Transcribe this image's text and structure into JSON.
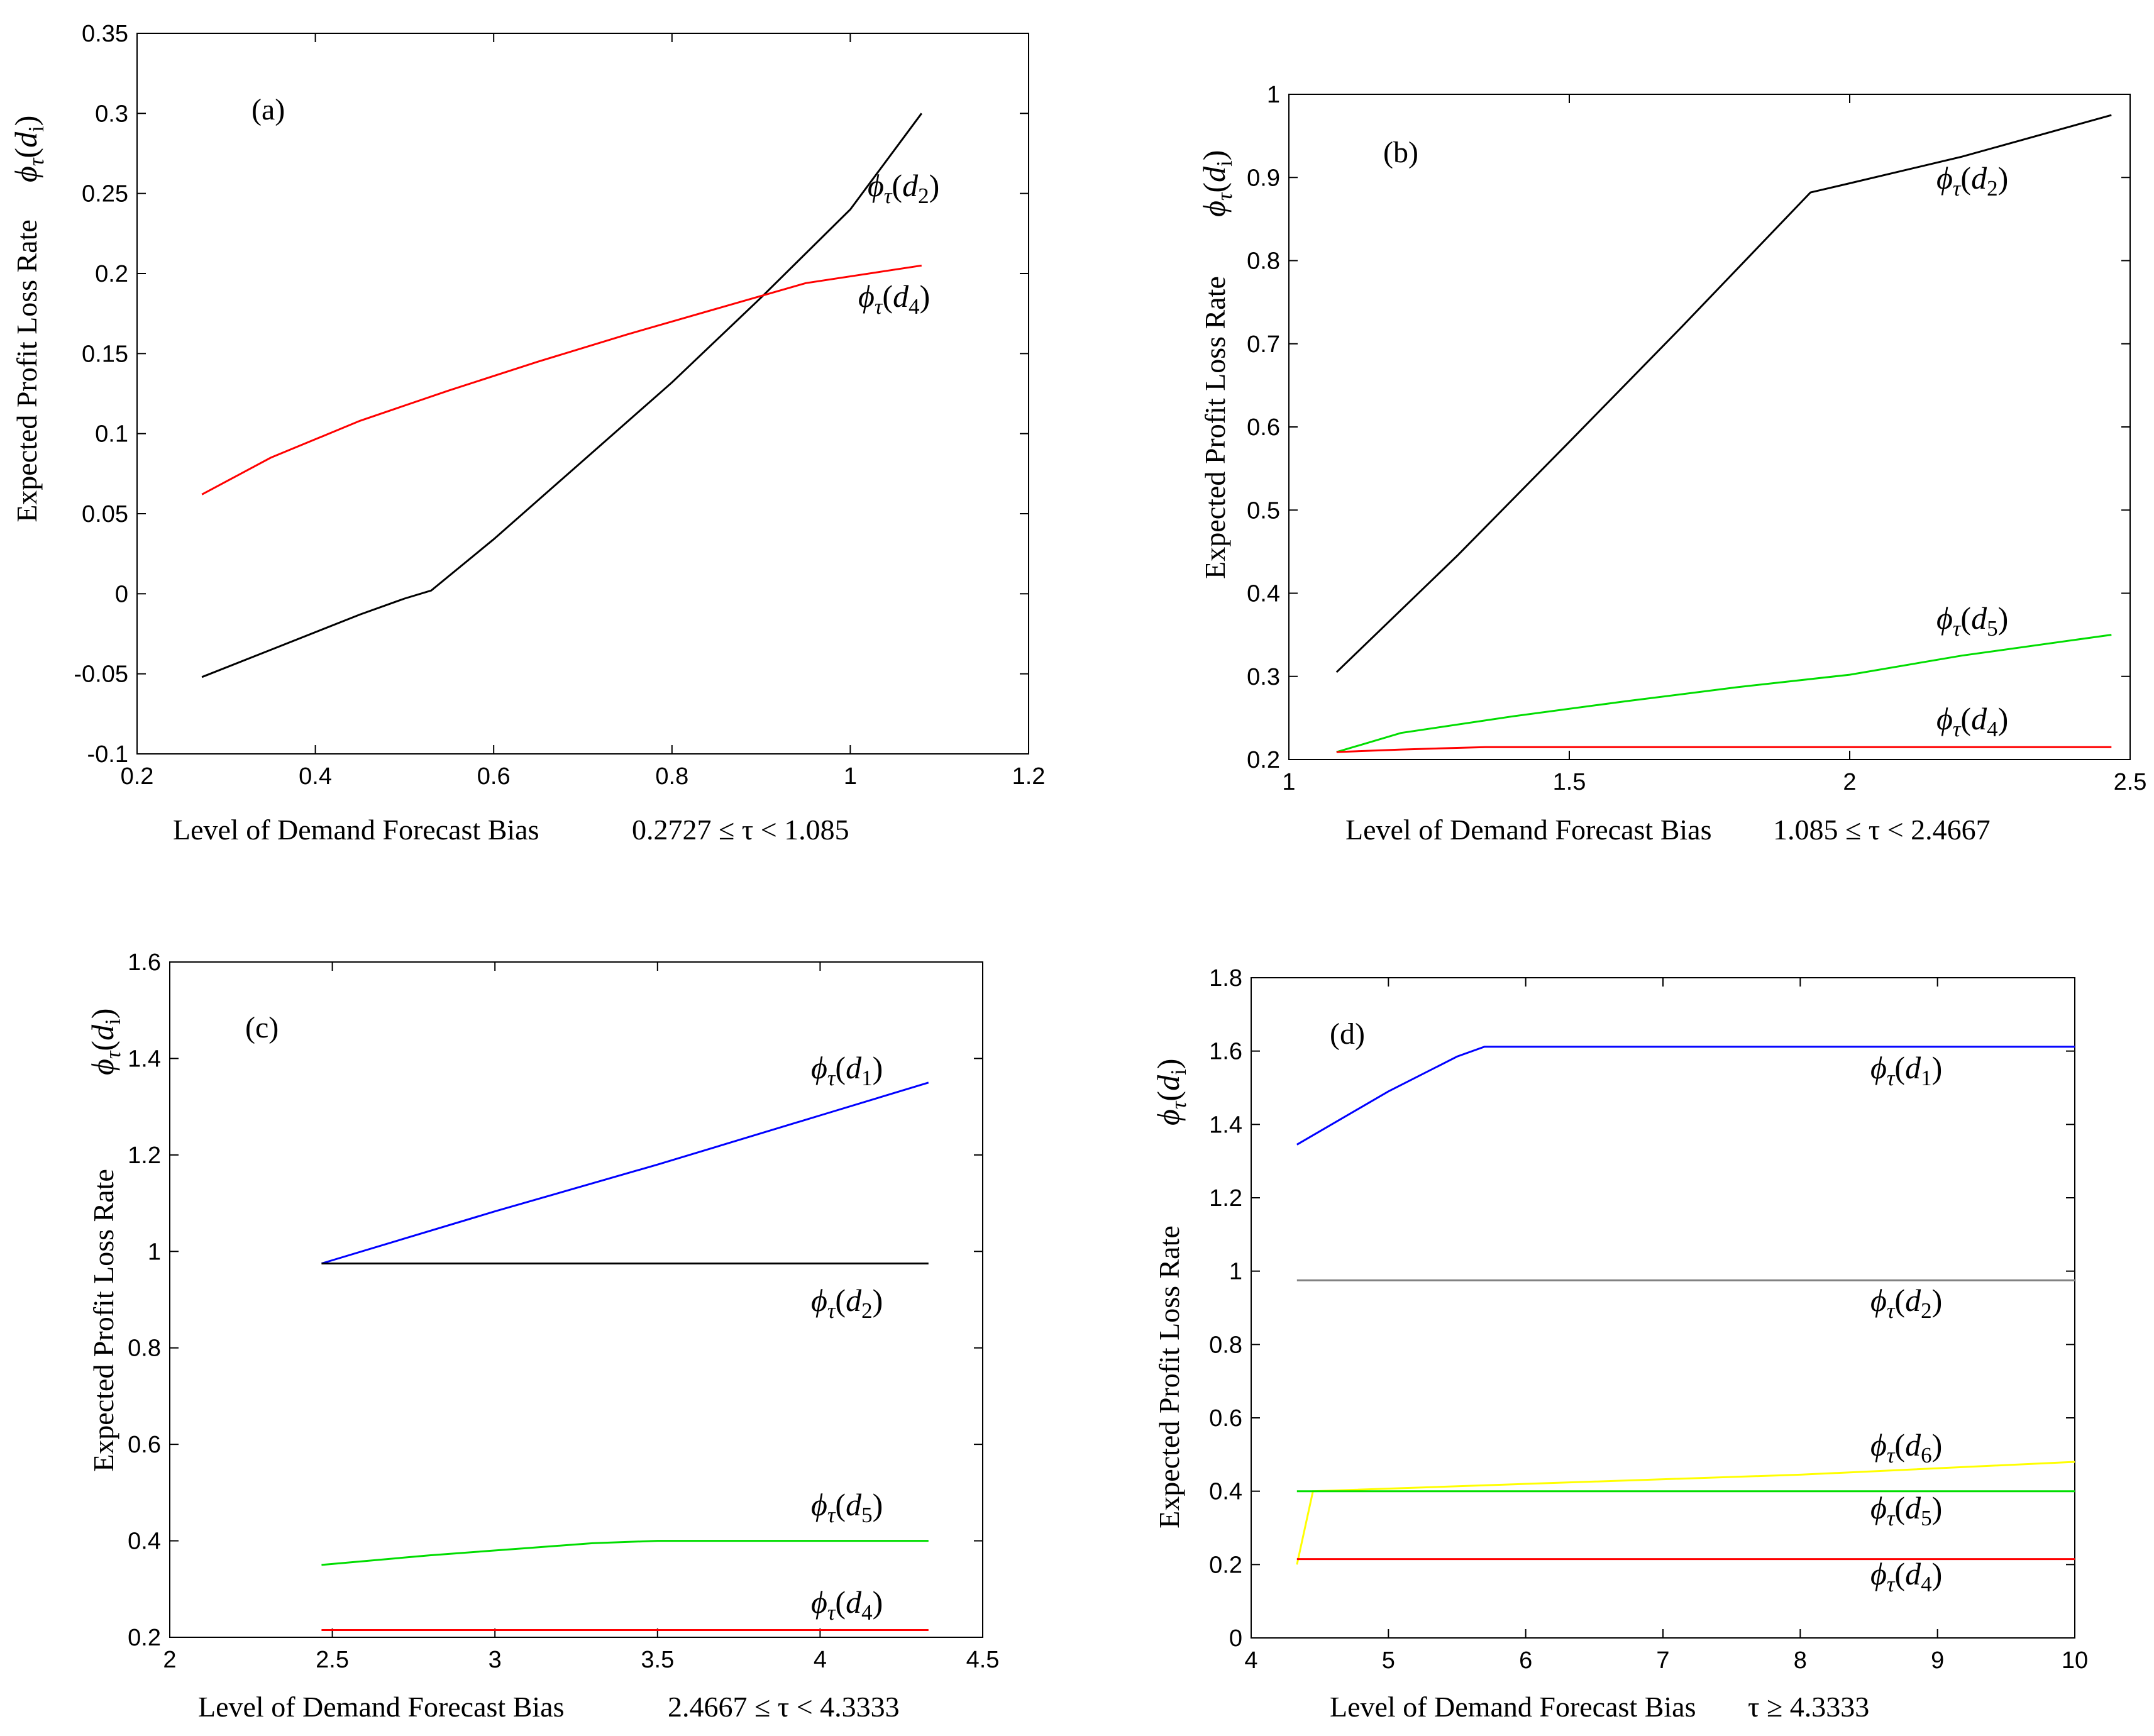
{
  "chart_data": [
    {
      "type": "line",
      "panel_label": "(a)",
      "xlabel": "Level of Demand Forecast Bias",
      "xlabel_condition": "0.2727 ≤ τ < 1.085",
      "ylabel": "Expected Profit Loss Rate",
      "ylabel_symbol": "ϕτ(di)",
      "xlim": [
        0.2,
        1.2
      ],
      "ylim": [
        -0.1,
        0.35
      ],
      "xticks": [
        "0.2",
        "0.4",
        "0.6",
        "0.8",
        "1",
        "1.2"
      ],
      "yticks": [
        "-0.1",
        "-0.05",
        "0",
        "0.05",
        "0.1",
        "0.15",
        "0.2",
        "0.25",
        "0.3",
        "0.35"
      ],
      "series": [
        {
          "name": "ϕτ(d2)",
          "color": "#000000",
          "x": [
            0.2727,
            0.35,
            0.45,
            0.5,
            0.53,
            0.6,
            0.7,
            0.8,
            0.9,
            1.0,
            1.08
          ],
          "y": [
            -0.052,
            -0.035,
            -0.013,
            -0.003,
            0.002,
            0.034,
            0.083,
            0.132,
            0.185,
            0.24,
            0.3
          ]
        },
        {
          "name": "ϕτ(d4)",
          "color": "#ff0000",
          "x": [
            0.2727,
            0.35,
            0.45,
            0.55,
            0.65,
            0.75,
            0.85,
            0.95,
            1.08
          ],
          "y": [
            0.062,
            0.085,
            0.108,
            0.127,
            0.145,
            0.162,
            0.178,
            0.194,
            0.205
          ]
        }
      ],
      "annotations": [
        {
          "series": "ϕτ(d2)",
          "symbol": "ϕ",
          "sub": "τ",
          "arg": "d",
          "argsub": "2"
        },
        {
          "series": "ϕτ(d4)",
          "symbol": "ϕ",
          "sub": "τ",
          "arg": "d",
          "argsub": "4"
        }
      ]
    },
    {
      "type": "line",
      "panel_label": "(b)",
      "xlabel": "Level of Demand Forecast Bias",
      "xlabel_condition": "1.085 ≤ τ < 2.4667",
      "ylabel": "Expected Profit Loss Rate",
      "ylabel_symbol": "ϕτ(di)",
      "xlim": [
        1,
        2.5
      ],
      "ylim": [
        0.2,
        1
      ],
      "xticks": [
        "1",
        "1.5",
        "2",
        "2.5"
      ],
      "yticks": [
        "0.2",
        "0.3",
        "0.4",
        "0.5",
        "0.6",
        "0.7",
        "0.8",
        "0.9",
        "1"
      ],
      "series": [
        {
          "name": "ϕτ(d2)",
          "color": "#000000",
          "x": [
            1.085,
            1.3,
            1.5,
            1.7,
            1.93,
            2.0,
            2.2,
            2.4667
          ],
          "y": [
            0.305,
            0.445,
            0.582,
            0.72,
            0.882,
            0.893,
            0.925,
            0.975
          ]
        },
        {
          "name": "ϕτ(d5)",
          "color": "#00dd00",
          "x": [
            1.085,
            1.2,
            1.4,
            1.6,
            1.8,
            2.0,
            2.2,
            2.4667
          ],
          "y": [
            0.209,
            0.232,
            0.252,
            0.27,
            0.287,
            0.302,
            0.325,
            0.35
          ]
        },
        {
          "name": "ϕτ(d4)",
          "color": "#ff0000",
          "x": [
            1.085,
            1.2,
            1.35,
            2.0,
            2.4667
          ],
          "y": [
            0.209,
            0.212,
            0.215,
            0.215,
            0.215
          ]
        }
      ],
      "annotations": [
        {
          "series": "ϕτ(d2)",
          "symbol": "ϕ",
          "sub": "τ",
          "arg": "d",
          "argsub": "2"
        },
        {
          "series": "ϕτ(d5)",
          "symbol": "ϕ",
          "sub": "τ",
          "arg": "d",
          "argsub": "5"
        },
        {
          "series": "ϕτ(d4)",
          "symbol": "ϕ",
          "sub": "τ",
          "arg": "d",
          "argsub": "4"
        }
      ]
    },
    {
      "type": "line",
      "panel_label": "(c)",
      "xlabel": "Level of Demand Forecast Bias",
      "xlabel_condition": "2.4667 ≤ τ < 4.3333",
      "ylabel": "Expected Profit Loss Rate",
      "ylabel_symbol": "ϕτ(di)",
      "xlim": [
        2,
        4.5
      ],
      "ylim": [
        0.2,
        1.6
      ],
      "xticks": [
        "2",
        "2.5",
        "3",
        "3.5",
        "4",
        "4.5"
      ],
      "yticks": [
        "0.2",
        "0.4",
        "0.6",
        "0.8",
        "1",
        "1.2",
        "1.4",
        "1.6"
      ],
      "series": [
        {
          "name": "ϕτ(d1)",
          "color": "#0000ff",
          "x": [
            2.4667,
            3.0,
            3.5,
            4.0,
            4.3333
          ],
          "y": [
            0.975,
            1.083,
            1.18,
            1.282,
            1.35
          ]
        },
        {
          "name": "ϕτ(d2)",
          "color": "#000000",
          "x": [
            2.4667,
            4.3333
          ],
          "y": [
            0.975,
            0.975
          ]
        },
        {
          "name": "ϕτ(d5)",
          "color": "#00dd00",
          "x": [
            2.4667,
            2.8,
            3.1,
            3.3,
            3.5,
            4.3333
          ],
          "y": [
            0.35,
            0.37,
            0.385,
            0.395,
            0.4,
            0.4
          ]
        },
        {
          "name": "ϕτ(d4)",
          "color": "#ff0000",
          "x": [
            2.4667,
            4.3333
          ],
          "y": [
            0.215,
            0.215
          ]
        }
      ],
      "annotations": [
        {
          "series": "ϕτ(d1)",
          "symbol": "ϕ",
          "sub": "τ",
          "arg": "d",
          "argsub": "1"
        },
        {
          "series": "ϕτ(d2)",
          "symbol": "ϕ",
          "sub": "τ",
          "arg": "d",
          "argsub": "2"
        },
        {
          "series": "ϕτ(d5)",
          "symbol": "ϕ",
          "sub": "τ",
          "arg": "d",
          "argsub": "5"
        },
        {
          "series": "ϕτ(d4)",
          "symbol": "ϕ",
          "sub": "τ",
          "arg": "d",
          "argsub": "4"
        }
      ]
    },
    {
      "type": "line",
      "panel_label": "(d)",
      "xlabel": "Level of Demand Forecast Bias",
      "xlabel_condition": "τ ≥ 4.3333",
      "ylabel": "Expected Profit Loss Rate",
      "ylabel_symbol": "ϕτ(di)",
      "xlim": [
        4,
        10
      ],
      "ylim": [
        0,
        1.8
      ],
      "xticks": [
        "4",
        "5",
        "6",
        "7",
        "8",
        "9",
        "10"
      ],
      "yticks": [
        "0",
        "0.2",
        "0.4",
        "0.6",
        "0.8",
        "1",
        "1.2",
        "1.4",
        "1.6",
        "1.8"
      ],
      "series": [
        {
          "name": "ϕτ(d1)",
          "color": "#0000ff",
          "x": [
            4.3333,
            5.0,
            5.5,
            5.7,
            10.0
          ],
          "y": [
            1.345,
            1.49,
            1.585,
            1.612,
            1.612
          ]
        },
        {
          "name": "ϕτ(d2)",
          "color": "#808080",
          "x": [
            4.3333,
            10.0
          ],
          "y": [
            0.975,
            0.975
          ]
        },
        {
          "name": "ϕτ(d6)",
          "color": "#ffff00",
          "x": [
            4.3333,
            4.45,
            6.0,
            8.0,
            10.0
          ],
          "y": [
            0.2,
            0.4,
            0.42,
            0.445,
            0.48
          ]
        },
        {
          "name": "ϕτ(d5)",
          "color": "#00dd00",
          "x": [
            4.3333,
            10.0
          ],
          "y": [
            0.4,
            0.4
          ]
        },
        {
          "name": "ϕτ(d4)",
          "color": "#ff0000",
          "x": [
            4.3333,
            10.0
          ],
          "y": [
            0.215,
            0.215
          ]
        }
      ],
      "annotations": [
        {
          "series": "ϕτ(d1)",
          "symbol": "ϕ",
          "sub": "τ",
          "arg": "d",
          "argsub": "1"
        },
        {
          "series": "ϕτ(d2)",
          "symbol": "ϕ",
          "sub": "τ",
          "arg": "d",
          "argsub": "2"
        },
        {
          "series": "ϕτ(d6)",
          "symbol": "ϕ",
          "sub": "τ",
          "arg": "d",
          "argsub": "6"
        },
        {
          "series": "ϕτ(d5)",
          "symbol": "ϕ",
          "sub": "τ",
          "arg": "d",
          "argsub": "5"
        },
        {
          "series": "ϕτ(d4)",
          "symbol": "ϕ",
          "sub": "τ",
          "arg": "d",
          "argsub": "4"
        }
      ]
    }
  ]
}
